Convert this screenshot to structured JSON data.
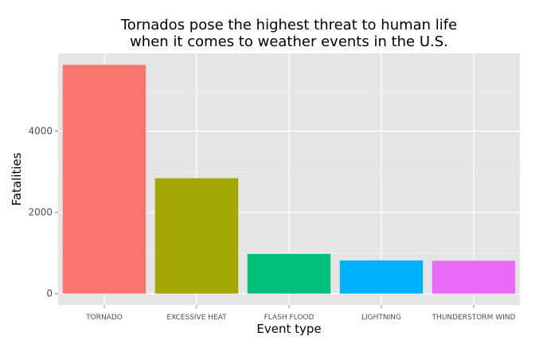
{
  "chart_data": {
    "type": "bar",
    "title_lines": [
      "Tornados pose the highest threat to human life",
      "when it comes to weather events in the U.S."
    ],
    "xlabel": "Event type",
    "ylabel": "Fatalities",
    "categories": [
      "TORNADO",
      "EXCESSIVE HEAT",
      "FLASH FLOOD",
      "LIGHTNING",
      "THUNDERSTORM WIND"
    ],
    "values": [
      5633,
      2840,
      978,
      816,
      810
    ],
    "colors": [
      "#F8766D",
      "#A3A500",
      "#00BF7D",
      "#00B0F6",
      "#E76BF3"
    ],
    "yticks": [
      0,
      2000,
      4000
    ],
    "ylim": [
      -280,
      5915
    ],
    "grid": true,
    "legend": "none"
  }
}
